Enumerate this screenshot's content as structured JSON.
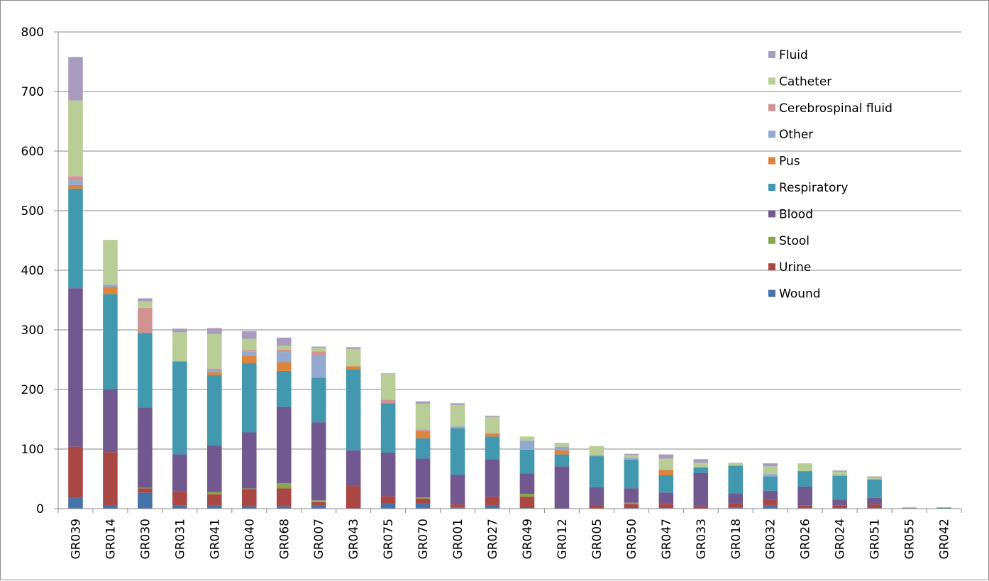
{
  "chart_data": {
    "type": "bar",
    "stacked": true,
    "categories": [
      "GR039",
      "GR014",
      "GR030",
      "GR031",
      "GR041",
      "GR040",
      "GR068",
      "GR007",
      "GR043",
      "GR075",
      "GR070",
      "GR001",
      "GR027",
      "GR049",
      "GR012",
      "GR005",
      "GR050",
      "GR047",
      "GR033",
      "GR018",
      "GR032",
      "GR026",
      "GR024",
      "GR051",
      "GR055",
      "GR042"
    ],
    "ylim": [
      0,
      800
    ],
    "yticks": [
      "0",
      "100",
      "200",
      "300",
      "400",
      "500",
      "600",
      "700",
      "800"
    ],
    "grid": true,
    "legend_position": "top-right",
    "series": [
      {
        "name": "Wound",
        "color": "#4572A7",
        "values": [
          18,
          6,
          27,
          5,
          6,
          4,
          4,
          5,
          0,
          9,
          9,
          2,
          6,
          1,
          0,
          0,
          1,
          1,
          0,
          2,
          5,
          1,
          1,
          1,
          1,
          0
        ]
      },
      {
        "name": "Urine",
        "color": "#AA4643",
        "values": [
          86,
          89,
          7,
          24,
          18,
          29,
          30,
          6,
          38,
          12,
          8,
          5,
          14,
          19,
          0,
          6,
          7,
          7,
          4,
          7,
          10,
          4,
          4,
          6,
          0,
          0
        ]
      },
      {
        "name": "Stool",
        "color": "#89A54E",
        "values": [
          0,
          0,
          1,
          0,
          4,
          1,
          9,
          3,
          0,
          0,
          2,
          0,
          0,
          5,
          0,
          0,
          2,
          0,
          0,
          0,
          0,
          0,
          0,
          0,
          0,
          0
        ]
      },
      {
        "name": "Blood",
        "color": "#71588F",
        "values": [
          266,
          105,
          135,
          62,
          78,
          94,
          128,
          131,
          60,
          73,
          65,
          50,
          63,
          34,
          71,
          30,
          24,
          19,
          56,
          17,
          15,
          32,
          10,
          11,
          0,
          0
        ]
      },
      {
        "name": "Respiratory",
        "color": "#4198AF",
        "values": [
          167,
          160,
          125,
          156,
          118,
          116,
          60,
          75,
          136,
          83,
          34,
          78,
          38,
          40,
          20,
          52,
          48,
          29,
          9,
          46,
          24,
          26,
          40,
          31,
          0,
          2
        ]
      },
      {
        "name": "Pus",
        "color": "#DB843D",
        "values": [
          6,
          12,
          0,
          0,
          5,
          12,
          15,
          0,
          5,
          0,
          12,
          0,
          4,
          0,
          7,
          0,
          0,
          9,
          0,
          0,
          0,
          0,
          0,
          0,
          0,
          0
        ]
      },
      {
        "name": "Other",
        "color": "#93A9CF",
        "values": [
          8,
          4,
          0,
          0,
          4,
          8,
          17,
          36,
          0,
          0,
          0,
          3,
          0,
          15,
          6,
          0,
          3,
          0,
          0,
          0,
          4,
          0,
          2,
          0,
          0,
          0
        ]
      },
      {
        "name": "Cerebrospinal fluid",
        "color": "#D19392",
        "values": [
          7,
          0,
          42,
          0,
          2,
          2,
          4,
          8,
          0,
          6,
          3,
          0,
          2,
          0,
          0,
          2,
          0,
          0,
          0,
          0,
          0,
          0,
          0,
          0,
          0,
          0
        ]
      },
      {
        "name": "Catheter",
        "color": "#B9CD96",
        "values": [
          127,
          75,
          11,
          49,
          58,
          19,
          6,
          6,
          29,
          43,
          43,
          36,
          27,
          7,
          5,
          15,
          5,
          19,
          8,
          5,
          13,
          13,
          5,
          3,
          0,
          0
        ]
      },
      {
        "name": "Fluid",
        "color": "#A99BBD",
        "values": [
          73,
          0,
          5,
          6,
          10,
          13,
          14,
          2,
          3,
          1,
          4,
          3,
          2,
          0,
          1,
          0,
          2,
          7,
          6,
          0,
          5,
          0,
          2,
          2,
          1,
          0
        ]
      }
    ]
  }
}
